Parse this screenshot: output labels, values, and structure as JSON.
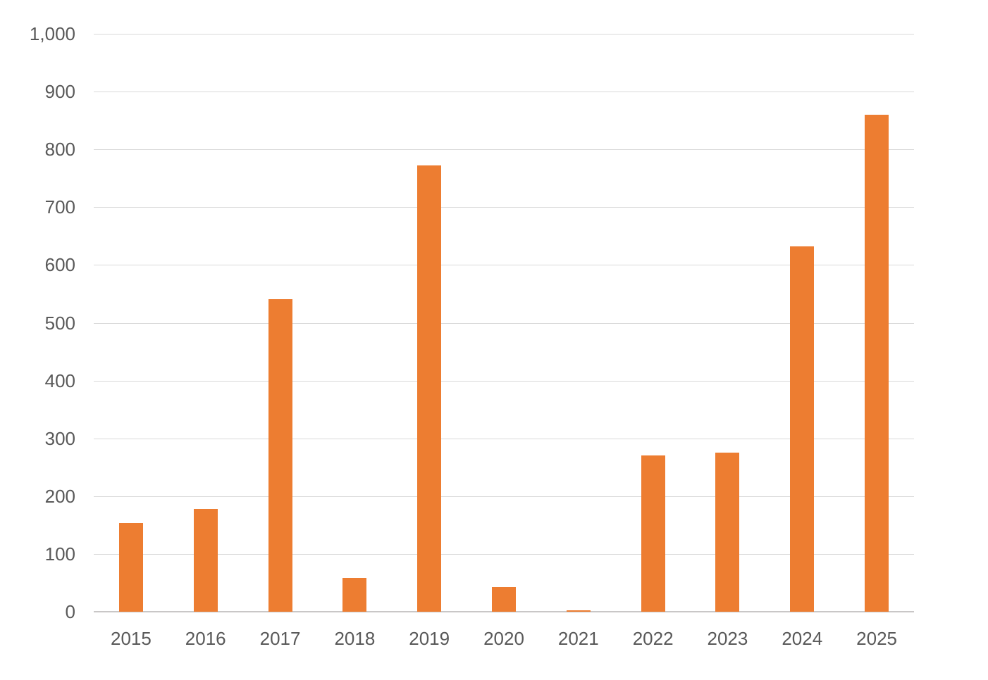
{
  "chart": {
    "background_color": "#ffffff",
    "bar_color": "#ED7D31",
    "gridline_color": "#d9d9d9",
    "axis_line_color": "#c9c7c7",
    "label_color": "#595959"
  },
  "chart_data": {
    "type": "bar",
    "title": "",
    "xlabel": "",
    "ylabel": "",
    "categories": [
      "2015",
      "2016",
      "2017",
      "2018",
      "2019",
      "2020",
      "2021",
      "2022",
      "2023",
      "2024",
      "2025"
    ],
    "values": [
      153,
      178,
      541,
      58,
      772,
      43,
      2,
      270,
      275,
      632,
      860
    ],
    "ylim": [
      0,
      1000
    ],
    "ytick_step": 100,
    "ytick_labels": [
      "1,000",
      "900",
      "800",
      "700",
      "600",
      "500",
      "400",
      "300",
      "200",
      "100",
      "0"
    ],
    "grid": true,
    "legend": "none",
    "series_color": "#ED7D31"
  }
}
